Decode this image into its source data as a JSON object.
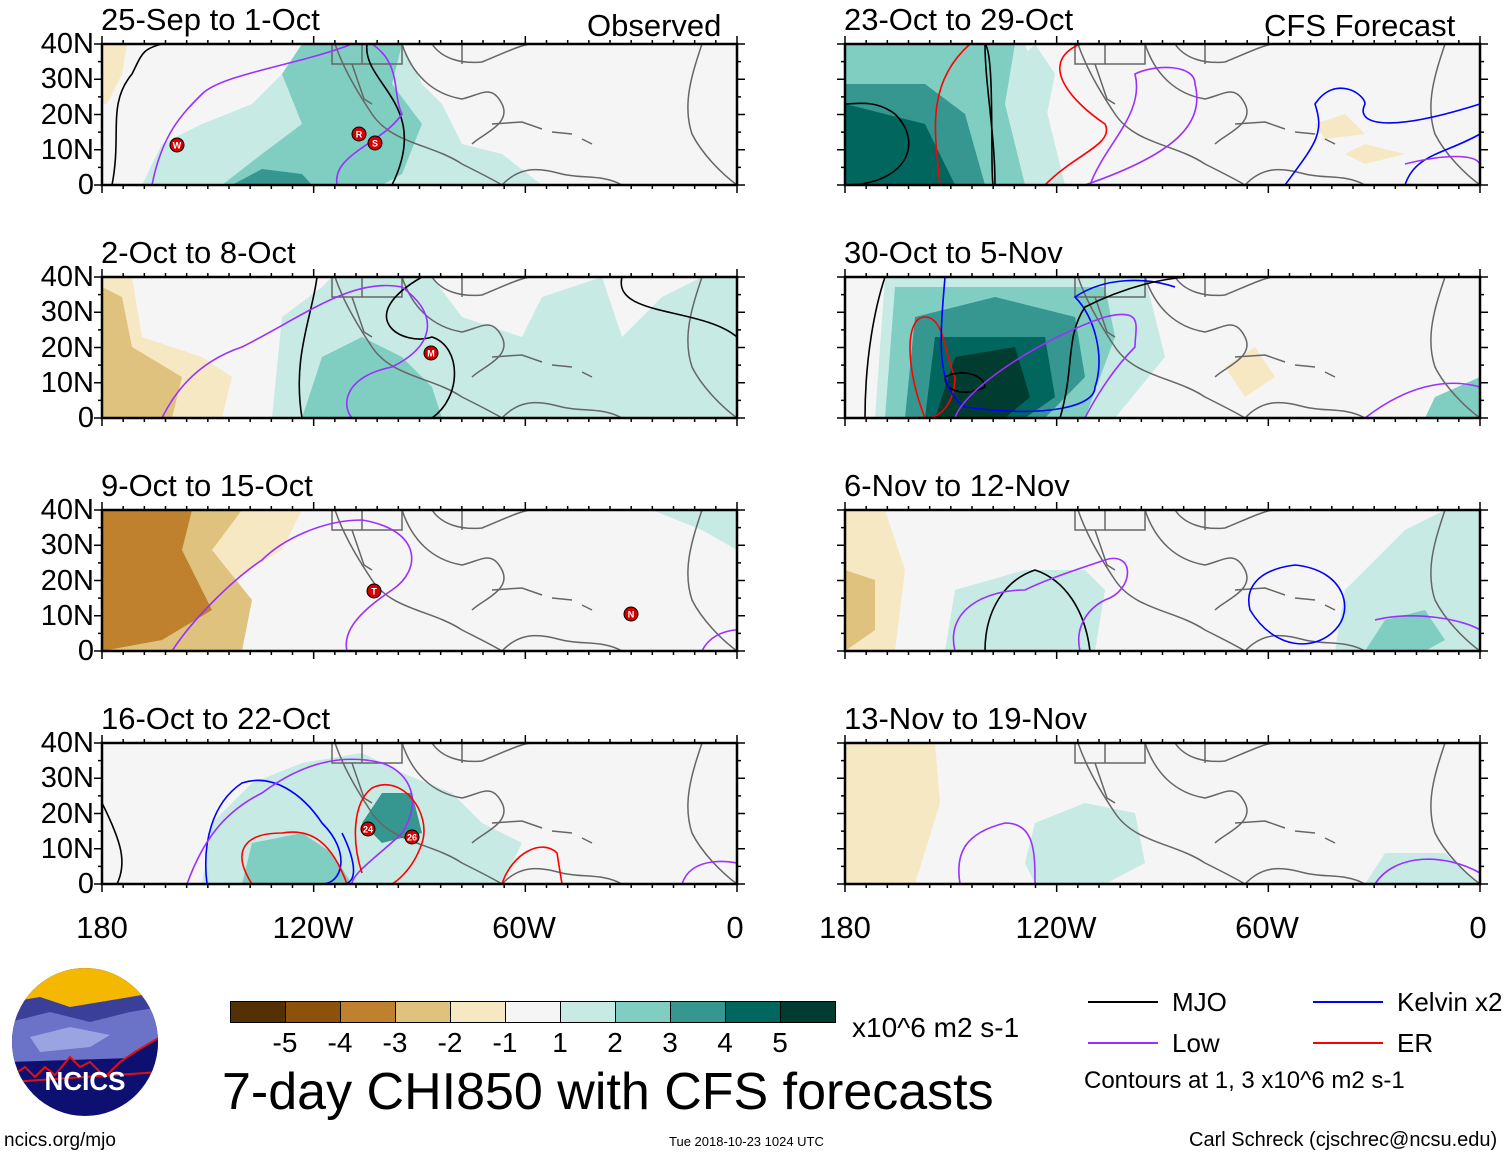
{
  "figure": {
    "title": "7-day CHI850 with CFS forecasts",
    "units": "x10^6 m2 s-1",
    "website": "ncics.org/mjo",
    "timestamp": "Tue 2018-10-23 1024 UTC",
    "author": "Carl Schreck (cjschrec@ncsu.edu)",
    "logo_text": "NCICS",
    "column_labels": {
      "observed": "Observed",
      "forecast": "CFS Forecast"
    }
  },
  "chart_data": {
    "type": "heatmap",
    "title": "7-day CHI850 with CFS forecasts",
    "ytick_labels": [
      "40N",
      "30N",
      "20N",
      "10N",
      "0"
    ],
    "xtick_labels": [
      "180",
      "120W",
      "60W",
      "0"
    ],
    "ylim": [
      0,
      40
    ],
    "xlim": [
      -180,
      0
    ],
    "panels": [
      {
        "id": "p1",
        "title": "25-Sep to 1-Oct",
        "type": "Observed",
        "storms": [
          "W",
          "R",
          "S"
        ]
      },
      {
        "id": "p2",
        "title": "2-Oct to 8-Oct",
        "type": "Observed",
        "storms": [
          "M"
        ]
      },
      {
        "id": "p3",
        "title": "9-Oct to 15-Oct",
        "type": "Observed",
        "storms": [
          "T",
          "N"
        ]
      },
      {
        "id": "p4",
        "title": "16-Oct to 22-Oct",
        "type": "Observed",
        "storms": [
          "24",
          "26"
        ]
      },
      {
        "id": "p5",
        "title": "23-Oct to 29-Oct",
        "type": "CFS Forecast",
        "storms": []
      },
      {
        "id": "p6",
        "title": "30-Oct to 5-Nov",
        "type": "CFS Forecast",
        "storms": []
      },
      {
        "id": "p7",
        "title": "6-Nov to 12-Nov",
        "type": "CFS Forecast",
        "storms": []
      },
      {
        "id": "p8",
        "title": "13-Nov to 19-Nov",
        "type": "CFS Forecast",
        "storms": []
      }
    ],
    "colorbar": {
      "tick_labels": [
        "-5",
        "-4",
        "-3",
        "-2",
        "-1",
        "1",
        "2",
        "3",
        "4",
        "5"
      ],
      "colors": [
        "#543005",
        "#8c510a",
        "#bf812d",
        "#dfc27d",
        "#f6e8c3",
        "#f5f5f5",
        "#c7eae5",
        "#80cdc1",
        "#35978f",
        "#01665e",
        "#003c30"
      ]
    },
    "legend": [
      {
        "label": "MJO",
        "color": "#000000"
      },
      {
        "label": "Kelvin x2",
        "color": "#0000ff"
      },
      {
        "label": "Low",
        "color": "#9b30ff"
      },
      {
        "label": "ER",
        "color": "#ff0000"
      }
    ],
    "contour_note": "Contours at 1, 3 x10^6 m2 s-1"
  }
}
